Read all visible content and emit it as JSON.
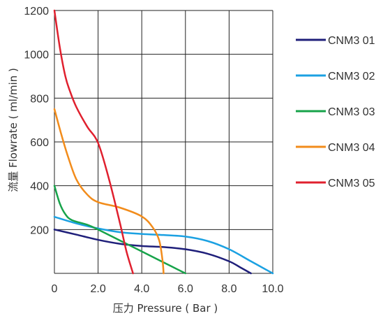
{
  "chart_data": {
    "type": "line",
    "title": "",
    "xlabel": "压力 Pressure ( Bar )",
    "ylabel": "流量 Flowrate ( ml/min )",
    "xlim": [
      0,
      10
    ],
    "ylim": [
      0,
      1200
    ],
    "x_ticks": [
      "0",
      "2.0",
      "4.0",
      "6.0",
      "8.0",
      "10.0"
    ],
    "y_ticks": [
      "200",
      "400",
      "600",
      "800",
      "1000",
      "1200"
    ],
    "grid": true,
    "legend_position": "right",
    "series": [
      {
        "name": "CNM3 01",
        "color": "#1f1f7a",
        "x": [
          0,
          1,
          2,
          3,
          4,
          5,
          6,
          7,
          8,
          8.5,
          9
        ],
        "y": [
          200,
          177,
          153,
          135,
          125,
          120,
          110,
          90,
          55,
          28,
          0
        ]
      },
      {
        "name": "CNM3 02",
        "color": "#1ba1e2",
        "x": [
          0,
          1,
          2,
          3,
          4,
          5,
          6,
          7,
          8,
          9,
          10
        ],
        "y": [
          258,
          228,
          205,
          188,
          180,
          175,
          168,
          148,
          110,
          55,
          0
        ]
      },
      {
        "name": "CNM3 03",
        "color": "#17a34a",
        "x": [
          0,
          0.25,
          0.5,
          0.8,
          1.5,
          2,
          3,
          4,
          5,
          6
        ],
        "y": [
          400,
          318,
          270,
          243,
          222,
          200,
          150,
          100,
          50,
          0
        ]
      },
      {
        "name": "CNM3 04",
        "color": "#f28c1b",
        "x": [
          0,
          0.3,
          0.6,
          1,
          1.5,
          2,
          3,
          4,
          4.5,
          4.8,
          4.95,
          5
        ],
        "y": [
          750,
          640,
          540,
          430,
          360,
          325,
          300,
          260,
          210,
          150,
          60,
          0
        ]
      },
      {
        "name": "CNM3 05",
        "color": "#e0202e",
        "x": [
          0,
          0.25,
          0.5,
          0.7,
          1,
          1.5,
          2,
          2.5,
          3,
          3.3,
          3.6
        ],
        "y": [
          1200,
          1030,
          900,
          835,
          760,
          670,
          595,
          430,
          230,
          100,
          0
        ]
      }
    ]
  }
}
